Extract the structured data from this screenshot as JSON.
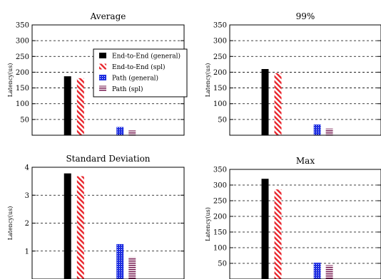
{
  "figure": {
    "legend": {
      "entries": [
        "End-to-End (general)",
        "End-to-End (spl)",
        "Path (general)",
        "Path (spl)"
      ]
    }
  },
  "series_styles": [
    {
      "name": "End-to-End (general)",
      "color": "#000000",
      "pattern": "solid"
    },
    {
      "name": "End-to-End (spl)",
      "color": "#e8242b",
      "pattern": "diagonal-hatch"
    },
    {
      "name": "Path (general)",
      "color": "#1f2fe0",
      "pattern": "grid-hatch"
    },
    {
      "name": "Path (spl)",
      "color": "#7a2055",
      "pattern": "horizontal-hatch"
    }
  ],
  "chart_data": [
    {
      "type": "bar",
      "title": "Average",
      "ylabel": "Latency(us)",
      "ylim": [
        0,
        350
      ],
      "yticks": [
        50,
        100,
        150,
        200,
        250,
        300,
        350
      ],
      "grid": true,
      "legend_position": "right",
      "series": [
        {
          "name": "End-to-End (general)",
          "values": [
            187
          ]
        },
        {
          "name": "End-to-End (spl)",
          "values": [
            181
          ]
        },
        {
          "name": "Path (general)",
          "values": [
            26
          ]
        },
        {
          "name": "Path (spl)",
          "values": [
            15
          ]
        }
      ]
    },
    {
      "type": "bar",
      "title": "99%",
      "ylabel": "Latency(us)",
      "ylim": [
        0,
        350
      ],
      "yticks": [
        50,
        100,
        150,
        200,
        250,
        300,
        350
      ],
      "grid": true,
      "series": [
        {
          "name": "End-to-End (general)",
          "values": [
            210
          ]
        },
        {
          "name": "End-to-End (spl)",
          "values": [
            197
          ]
        },
        {
          "name": "Path (general)",
          "values": [
            34
          ]
        },
        {
          "name": "Path (spl)",
          "values": [
            21
          ]
        }
      ]
    },
    {
      "type": "bar",
      "title": "Standard Deviation",
      "ylabel": "Latency(us)",
      "ylim": [
        0,
        4
      ],
      "yticks": [
        1,
        2,
        3,
        4
      ],
      "grid": true,
      "series": [
        {
          "name": "End-to-End (general)",
          "values": [
            3.78
          ]
        },
        {
          "name": "End-to-End (spl)",
          "values": [
            3.68
          ]
        },
        {
          "name": "Path (general)",
          "values": [
            1.25
          ]
        },
        {
          "name": "Path (spl)",
          "values": [
            0.78
          ]
        }
      ]
    },
    {
      "type": "bar",
      "title": "Max",
      "ylabel": "Latency(us)",
      "ylim": [
        0,
        350
      ],
      "yticks": [
        50,
        100,
        150,
        200,
        250,
        300,
        350
      ],
      "grid": true,
      "series": [
        {
          "name": "End-to-End (general)",
          "values": [
            320
          ]
        },
        {
          "name": "End-to-End (spl)",
          "values": [
            286
          ]
        },
        {
          "name": "Path (general)",
          "values": [
            52
          ]
        },
        {
          "name": "Path (spl)",
          "values": [
            44
          ]
        }
      ]
    }
  ]
}
